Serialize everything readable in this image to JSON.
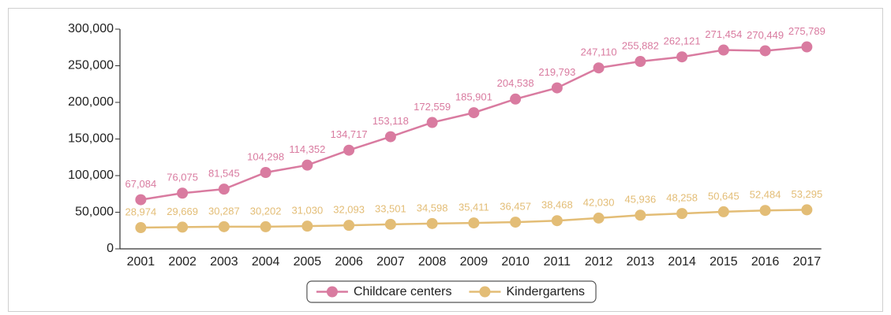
{
  "chart_data": {
    "type": "line",
    "categories": [
      "2001",
      "2002",
      "2003",
      "2004",
      "2005",
      "2006",
      "2007",
      "2008",
      "2009",
      "2010",
      "2011",
      "2012",
      "2013",
      "2014",
      "2015",
      "2016",
      "2017"
    ],
    "series": [
      {
        "name": "Childcare centers",
        "color": "#d97ba0",
        "values": [
          67084,
          76075,
          81545,
          104298,
          114352,
          134717,
          153118,
          172559,
          185901,
          204538,
          219793,
          247110,
          255882,
          262121,
          271454,
          270449,
          275789
        ],
        "value_labels": [
          "67,084",
          "76,075",
          "81,545",
          "104,298",
          "114,352",
          "134,717",
          "153,118",
          "172,559",
          "185,901",
          "204,538",
          "219,793",
          "247,110",
          "255,882",
          "262,121",
          "271,454",
          "270,449",
          "275,789"
        ]
      },
      {
        "name": "Kindergartens",
        "color": "#e3bd76",
        "values": [
          28974,
          29669,
          30287,
          30202,
          31030,
          32093,
          33501,
          34598,
          35411,
          36457,
          38468,
          42030,
          45936,
          48258,
          50645,
          52484,
          53295
        ],
        "value_labels": [
          "28,974",
          "29,669",
          "30,287",
          "30,202",
          "31,030",
          "32,093",
          "33,501",
          "34,598",
          "35,411",
          "36,457",
          "38,468",
          "42,030",
          "45,936",
          "48,258",
          "50,645",
          "52,484",
          "53,295"
        ]
      }
    ],
    "ylim": [
      0,
      300000
    ],
    "yticks": [
      0,
      {
        "value": 50000,
        "label": "50,000"
      },
      {
        "value": 100000,
        "label": "100,000"
      },
      {
        "value": 150000,
        "label": "150,000"
      },
      {
        "value": 200000,
        "label": "200,000"
      },
      {
        "value": 250000,
        "label": "250,000"
      },
      {
        "value": 300000,
        "label": "300,000"
      }
    ],
    "legend": "bottom"
  }
}
